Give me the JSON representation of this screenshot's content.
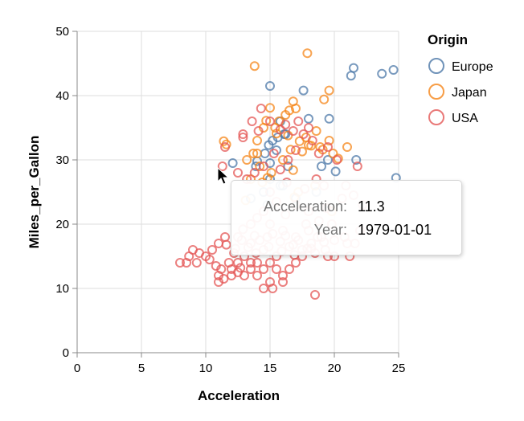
{
  "chart_data": {
    "type": "scatter",
    "xlabel": "Acceleration",
    "ylabel": "Miles_per_Gallon",
    "xlim": [
      0,
      25
    ],
    "ylim": [
      0,
      50
    ],
    "xticks": [
      "0",
      "5",
      "10",
      "15",
      "20",
      "25"
    ],
    "yticks": [
      "0",
      "10",
      "20",
      "30",
      "40",
      "50"
    ],
    "grid": true,
    "legend": {
      "title": "Origin",
      "placement": "right"
    },
    "series": [
      {
        "name": "Europe",
        "color": "#4c78a8",
        "points": [
          [
            21.5,
            44.3
          ],
          [
            21.3,
            43.1
          ],
          [
            23.7,
            43.4
          ],
          [
            24.6,
            44.0
          ],
          [
            15.0,
            41.5
          ],
          [
            17.6,
            40.8
          ],
          [
            18.0,
            36.4
          ],
          [
            19.6,
            36.4
          ],
          [
            19.0,
            29.0
          ],
          [
            19.5,
            30.0
          ],
          [
            21.7,
            30.0
          ],
          [
            20.1,
            28.2
          ],
          [
            24.8,
            27.2
          ],
          [
            15.5,
            31.5
          ],
          [
            15.0,
            29.5
          ],
          [
            16.0,
            26.0
          ],
          [
            14.5,
            25.0
          ],
          [
            14.0,
            29.8
          ],
          [
            13.9,
            29.0
          ],
          [
            12.1,
            29.5
          ],
          [
            16.1,
            34.0
          ],
          [
            15.6,
            33.5
          ],
          [
            14.9,
            32.3
          ],
          [
            15.0,
            27.0
          ],
          [
            13.5,
            24.0
          ],
          [
            15.8,
            26.0
          ],
          [
            15.2,
            33.0
          ],
          [
            18.6,
            25.0
          ],
          [
            14.8,
            23.0
          ],
          [
            15.8,
            36.0
          ],
          [
            16.2,
            34.0
          ],
          [
            16.4,
            29.0
          ],
          [
            14.6,
            31.0
          ],
          [
            17.0,
            24.0
          ]
        ]
      },
      {
        "name": "Japan",
        "color": "#f58518",
        "points": [
          [
            17.9,
            46.6
          ],
          [
            13.8,
            44.6
          ],
          [
            19.6,
            40.8
          ],
          [
            19.2,
            39.4
          ],
          [
            17.0,
            38.0
          ],
          [
            16.8,
            39.1
          ],
          [
            15.0,
            38.1
          ],
          [
            16.5,
            37.7
          ],
          [
            16.2,
            37.0
          ],
          [
            14.7,
            36.1
          ],
          [
            14.5,
            35.0
          ],
          [
            15.5,
            34.1
          ],
          [
            16.4,
            33.8
          ],
          [
            17.3,
            32.9
          ],
          [
            18.0,
            32.3
          ],
          [
            19.1,
            31.6
          ],
          [
            21.0,
            32.0
          ],
          [
            19.9,
            31.0
          ],
          [
            11.4,
            32.9
          ],
          [
            11.6,
            32.4
          ],
          [
            13.2,
            30.0
          ],
          [
            14.2,
            29.0
          ],
          [
            14.0,
            31.0
          ],
          [
            16.6,
            31.6
          ],
          [
            17.5,
            31.3
          ],
          [
            18.2,
            32.2
          ],
          [
            18.9,
            32.0
          ],
          [
            19.6,
            33.0
          ],
          [
            15.4,
            35.0
          ],
          [
            14.0,
            33.0
          ],
          [
            13.7,
            31.0
          ],
          [
            16.0,
            30.0
          ],
          [
            15.1,
            28.0
          ],
          [
            13.5,
            27.0
          ],
          [
            14.8,
            27.2
          ],
          [
            17.2,
            25.0
          ],
          [
            18.5,
            26.0
          ],
          [
            16.9,
            24.2
          ],
          [
            13.1,
            23.7
          ],
          [
            14.4,
            26.5
          ],
          [
            17.8,
            33.5
          ],
          [
            18.6,
            34.5
          ],
          [
            16.8,
            28.4
          ],
          [
            20.3,
            30.2
          ],
          [
            19.8,
            22.0
          ],
          [
            15.7,
            36.0
          ]
        ]
      },
      {
        "name": "USA",
        "color": "#e45756",
        "points": [
          [
            11.3,
            29.0
          ],
          [
            11.5,
            32.0
          ],
          [
            12.5,
            28.0
          ],
          [
            13.2,
            27.0
          ],
          [
            13.8,
            28.0
          ],
          [
            14.5,
            29.0
          ],
          [
            15.3,
            31.0
          ],
          [
            15.8,
            28.5
          ],
          [
            16.4,
            30.0
          ],
          [
            17.0,
            31.5
          ],
          [
            17.6,
            34.0
          ],
          [
            18.3,
            33.0
          ],
          [
            18.8,
            31.0
          ],
          [
            19.5,
            32.0
          ],
          [
            20.2,
            30.0
          ],
          [
            21.8,
            29.0
          ],
          [
            20.9,
            26.0
          ],
          [
            18.6,
            27.0
          ],
          [
            17.7,
            25.5
          ],
          [
            16.3,
            26.5
          ],
          [
            15.0,
            25.0
          ],
          [
            13.6,
            36.0
          ],
          [
            14.1,
            34.5
          ],
          [
            15.0,
            36.0
          ],
          [
            15.8,
            34.7
          ],
          [
            12.9,
            34.0
          ],
          [
            12.9,
            33.5
          ],
          [
            14.3,
            38.0
          ],
          [
            16.8,
            34.5
          ],
          [
            17.2,
            36.0
          ],
          [
            18.0,
            35.0
          ],
          [
            16.2,
            35.5
          ],
          [
            19.2,
            26.0
          ],
          [
            20.6,
            24.0
          ],
          [
            22.2,
            23.0
          ],
          [
            21.5,
            24.5
          ],
          [
            19.4,
            22.5
          ],
          [
            18.0,
            22.0
          ],
          [
            17.0,
            23.0
          ],
          [
            16.2,
            21.5
          ],
          [
            15.5,
            23.5
          ],
          [
            14.5,
            22.0
          ],
          [
            13.5,
            20.0
          ],
          [
            14.0,
            21.0
          ],
          [
            15.0,
            20.0
          ],
          [
            16.0,
            19.0
          ],
          [
            17.0,
            18.0
          ],
          [
            18.0,
            19.0
          ],
          [
            19.0,
            18.0
          ],
          [
            20.0,
            17.5
          ],
          [
            21.0,
            17.0
          ],
          [
            19.5,
            15.0
          ],
          [
            18.5,
            15.5
          ],
          [
            17.5,
            16.0
          ],
          [
            16.5,
            16.5
          ],
          [
            15.5,
            15.0
          ],
          [
            14.5,
            16.0
          ],
          [
            13.5,
            17.0
          ],
          [
            12.5,
            18.0
          ],
          [
            11.5,
            18.0
          ],
          [
            11.0,
            17.0
          ],
          [
            10.5,
            16.0
          ],
          [
            10.0,
            15.0
          ],
          [
            9.5,
            15.5
          ],
          [
            9.0,
            16.0
          ],
          [
            8.5,
            14.0
          ],
          [
            8.0,
            14.0
          ],
          [
            8.7,
            15.0
          ],
          [
            9.3,
            14.0
          ],
          [
            10.3,
            14.5
          ],
          [
            11.2,
            13.0
          ],
          [
            11.0,
            12.0
          ],
          [
            11.4,
            11.5
          ],
          [
            11.0,
            11.0
          ],
          [
            12.0,
            13.0
          ],
          [
            12.5,
            14.0
          ],
          [
            13.0,
            15.0
          ],
          [
            13.5,
            13.0
          ],
          [
            14.0,
            14.0
          ],
          [
            14.5,
            13.0
          ],
          [
            15.0,
            14.0
          ],
          [
            15.5,
            13.0
          ],
          [
            16.0,
            12.0
          ],
          [
            16.5,
            13.0
          ],
          [
            17.0,
            14.0
          ],
          [
            17.5,
            15.0
          ],
          [
            12.0,
            12.0
          ],
          [
            12.5,
            12.5
          ],
          [
            13.0,
            12.0
          ],
          [
            13.5,
            14.0
          ],
          [
            14.0,
            12.0
          ],
          [
            14.5,
            10.0
          ],
          [
            15.0,
            11.0
          ],
          [
            15.2,
            10.0
          ],
          [
            16.0,
            11.0
          ],
          [
            18.5,
            9.0
          ],
          [
            18.2,
            17.0
          ],
          [
            18.7,
            18.0
          ],
          [
            19.3,
            16.0
          ],
          [
            20.0,
            15.0
          ],
          [
            21.2,
            15.0
          ],
          [
            21.6,
            17.0
          ],
          [
            20.8,
            18.0
          ],
          [
            22.0,
            19.0
          ],
          [
            17.8,
            20.0
          ],
          [
            18.8,
            20.5
          ],
          [
            19.8,
            20.0
          ],
          [
            12.8,
            17.5
          ],
          [
            13.8,
            18.2
          ],
          [
            14.8,
            18.0
          ],
          [
            15.8,
            17.3
          ],
          [
            16.8,
            16.8
          ],
          [
            12.2,
            15.5
          ],
          [
            11.8,
            14.0
          ],
          [
            10.8,
            13.5
          ],
          [
            12.7,
            13.2
          ],
          [
            13.9,
            15.5
          ],
          [
            14.9,
            16.5
          ],
          [
            15.9,
            15.8
          ],
          [
            16.9,
            15.2
          ],
          [
            17.9,
            16.2
          ],
          [
            12.3,
            16.2
          ],
          [
            13.3,
            16.4
          ],
          [
            14.2,
            17.5
          ],
          [
            15.2,
            18.5
          ],
          [
            16.2,
            18.2
          ],
          [
            17.2,
            17.5
          ],
          [
            18.2,
            16.2
          ],
          [
            19.2,
            17.2
          ],
          [
            11.6,
            16.8
          ],
          [
            12.9,
            19.2
          ]
        ]
      }
    ],
    "tooltip": {
      "rows": [
        {
          "key": "Acceleration:",
          "value": "11.3"
        },
        {
          "key": "Year:",
          "value": "1979-01-01"
        }
      ]
    }
  }
}
